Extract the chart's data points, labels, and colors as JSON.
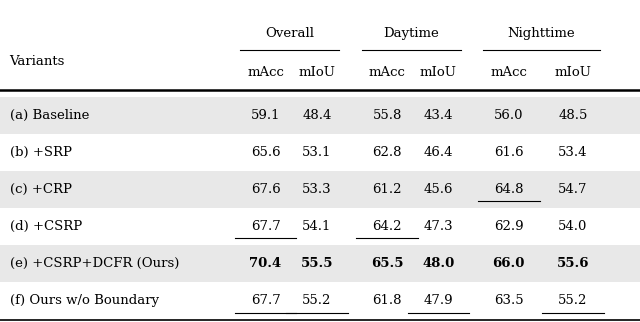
{
  "variants_label": "Variants",
  "group_labels": [
    "Overall",
    "Daytime",
    "Nighttime"
  ],
  "sub_labels": [
    "mAcc",
    "mIoU",
    "mAcc",
    "mIoU",
    "mAcc",
    "mIoU"
  ],
  "rows": [
    {
      "label": "(a) Baseline",
      "values": [
        "59.1",
        "48.4",
        "55.8",
        "43.4",
        "56.0",
        "48.5"
      ],
      "bold": [
        false,
        false,
        false,
        false,
        false,
        false
      ],
      "underline": [
        false,
        false,
        false,
        false,
        false,
        false
      ],
      "shaded": true
    },
    {
      "label": "(b) +SRP",
      "values": [
        "65.6",
        "53.1",
        "62.8",
        "46.4",
        "61.6",
        "53.4"
      ],
      "bold": [
        false,
        false,
        false,
        false,
        false,
        false
      ],
      "underline": [
        false,
        false,
        false,
        false,
        false,
        false
      ],
      "shaded": false
    },
    {
      "label": "(c) +CRP",
      "values": [
        "67.6",
        "53.3",
        "61.2",
        "45.6",
        "64.8",
        "54.7"
      ],
      "bold": [
        false,
        false,
        false,
        false,
        false,
        false
      ],
      "underline": [
        false,
        false,
        false,
        false,
        true,
        false
      ],
      "shaded": true
    },
    {
      "label": "(d) +CSRP",
      "values": [
        "67.7",
        "54.1",
        "64.2",
        "47.3",
        "62.9",
        "54.0"
      ],
      "bold": [
        false,
        false,
        false,
        false,
        false,
        false
      ],
      "underline": [
        true,
        false,
        true,
        false,
        false,
        false
      ],
      "shaded": false
    },
    {
      "label": "(e) +CSRP+DCFR (Ours)",
      "values": [
        "70.4",
        "55.5",
        "65.5",
        "48.0",
        "66.0",
        "55.6"
      ],
      "bold": [
        true,
        true,
        true,
        true,
        true,
        true
      ],
      "underline": [
        false,
        false,
        false,
        false,
        false,
        false
      ],
      "shaded": true
    },
    {
      "label": "(f) Ours w/o Boundary",
      "values": [
        "67.7",
        "55.2",
        "61.8",
        "47.9",
        "63.5",
        "55.2"
      ],
      "bold": [
        false,
        false,
        false,
        false,
        false,
        false
      ],
      "underline": [
        true,
        true,
        false,
        true,
        false,
        true
      ],
      "shaded": false
    }
  ],
  "shaded_color": "#e8e8e8",
  "bg_color": "#ffffff",
  "font_size": 9.5,
  "header_font_size": 9.5
}
